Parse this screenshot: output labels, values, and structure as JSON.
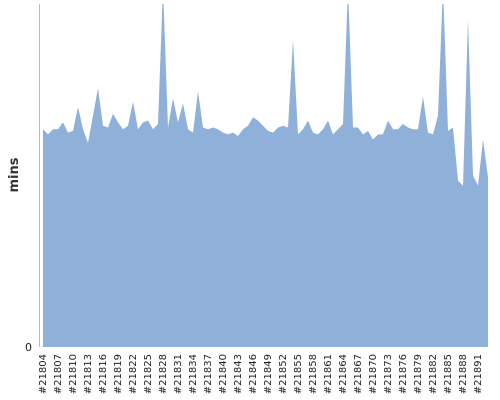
{
  "chart_data": {
    "type": "area",
    "y_label": "mins",
    "color": "#8fb0d9",
    "ylim": [
      0,
      20
    ],
    "yticks": [
      0
    ],
    "categories": [
      "#21804",
      null,
      null,
      "#21807",
      null,
      null,
      "#21810",
      null,
      null,
      "#21813",
      null,
      null,
      "#21816",
      null,
      null,
      "#21819",
      null,
      null,
      "#21822",
      null,
      null,
      "#21825",
      null,
      null,
      "#21828",
      null,
      null,
      "#21831",
      null,
      null,
      "#21834",
      null,
      null,
      "#21837",
      null,
      null,
      "#21840",
      null,
      null,
      "#21843",
      null,
      null,
      "#21846",
      null,
      null,
      "#21849",
      null,
      null,
      "#21852",
      null,
      null,
      "#21855",
      null,
      null,
      "#21858",
      null,
      null,
      "#21861",
      null,
      null,
      "#21864",
      null,
      null,
      "#21867",
      null,
      null,
      "#21870",
      null,
      null,
      "#21873",
      null,
      null,
      "#21876",
      null,
      null,
      "#21879",
      null,
      null,
      "#21882",
      null,
      null,
      "#21885",
      null,
      null,
      "#21888",
      null,
      null,
      "#21891",
      null,
      null
    ],
    "values": [
      12.7,
      12.4,
      12.7,
      12.7,
      13.1,
      12.5,
      12.6,
      14.0,
      12.7,
      11.9,
      13.5,
      15.1,
      12.9,
      12.8,
      13.6,
      13.1,
      12.7,
      12.9,
      14.3,
      12.7,
      13.1,
      13.2,
      12.7,
      13.0,
      21,
      12.8,
      14.5,
      13.1,
      14.2,
      12.7,
      12.5,
      14.9,
      12.8,
      12.7,
      12.8,
      12.7,
      12.5,
      12.4,
      12.5,
      12.3,
      12.7,
      12.9,
      13.4,
      13.2,
      12.9,
      12.6,
      12.5,
      12.8,
      12.9,
      12.8,
      17.9,
      12.4,
      12.7,
      13.2,
      12.5,
      12.4,
      12.7,
      13.2,
      12.4,
      12.7,
      13.0,
      21,
      12.8,
      12.8,
      12.4,
      12.6,
      12.1,
      12.4,
      12.4,
      13.2,
      12.7,
      12.7,
      13.0,
      12.8,
      12.7,
      12.7,
      14.6,
      12.5,
      12.4,
      13.5,
      21,
      12.6,
      12.8,
      9.7,
      9.4,
      19.1,
      10.0,
      9.4,
      12.1,
      9.9
    ]
  }
}
